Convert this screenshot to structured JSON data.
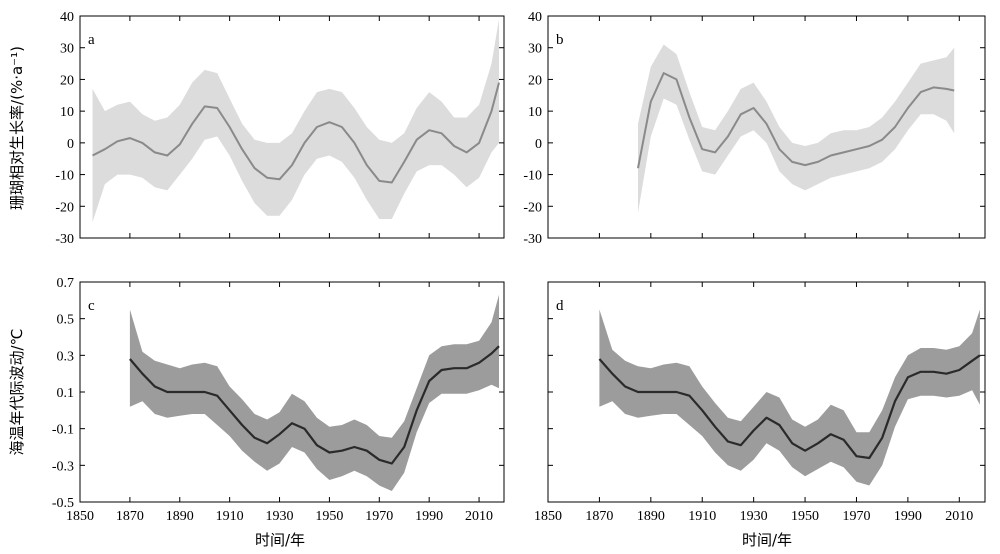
{
  "figure": {
    "xlabel": "时间/年",
    "ylabel_top": "珊瑚相对生长率/(%·a⁻¹)",
    "ylabel_bottom": "海温年代际波动/℃"
  },
  "colors": {
    "band_top": "#dcdcdc",
    "line_top": "#8a8a8a",
    "band_bottom": "#9c9c9c",
    "line_bottom": "#2a2a2a",
    "axis": "#000000"
  },
  "chart_data": [
    {
      "panel": "a",
      "type": "area",
      "xlim": [
        1850,
        2020
      ],
      "ylim": [
        -30,
        40
      ],
      "xticks": [
        1850,
        1870,
        1890,
        1910,
        1930,
        1950,
        1970,
        1990,
        2010
      ],
      "yticks": [
        -30,
        -20,
        -10,
        0,
        10,
        20,
        30,
        40
      ],
      "x": [
        1855,
        1860,
        1865,
        1870,
        1875,
        1880,
        1885,
        1890,
        1895,
        1900,
        1905,
        1910,
        1915,
        1920,
        1925,
        1930,
        1935,
        1940,
        1945,
        1950,
        1955,
        1960,
        1965,
        1970,
        1975,
        1980,
        1985,
        1990,
        1995,
        2000,
        2005,
        2010,
        2015,
        2018
      ],
      "mean": [
        -4,
        -2,
        0.5,
        1.5,
        0,
        -3,
        -4,
        -0.5,
        6,
        11.5,
        11,
        5,
        -2,
        -8,
        -11,
        -11.5,
        -7,
        0,
        5,
        6.5,
        5,
        0,
        -7,
        -12,
        -12.5,
        -6,
        1,
        4,
        3,
        -1,
        -3,
        0,
        10,
        19
      ],
      "upper": [
        17,
        10,
        12,
        13,
        9,
        7,
        8,
        12,
        19,
        23,
        22,
        14,
        6,
        1,
        0,
        0,
        3,
        10,
        16,
        17,
        16,
        11,
        5,
        1,
        0,
        3,
        11,
        16,
        13,
        8,
        8,
        12,
        25,
        39
      ],
      "lower": [
        -25,
        -13,
        -10,
        -10,
        -11,
        -14,
        -15,
        -10,
        -5,
        1,
        2,
        -4,
        -12,
        -19,
        -23,
        -23,
        -18,
        -10,
        -5,
        -4,
        -6,
        -11,
        -18,
        -24,
        -24,
        -16,
        -9,
        -7,
        -7,
        -10,
        -14,
        -11,
        -3,
        0
      ]
    },
    {
      "panel": "b",
      "type": "area",
      "xlim": [
        1850,
        2020
      ],
      "ylim": [
        -30,
        40
      ],
      "xticks": [
        1850,
        1870,
        1890,
        1910,
        1930,
        1950,
        1970,
        1990,
        2010
      ],
      "yticks": [
        -30,
        -20,
        -10,
        0,
        10,
        20,
        30,
        40
      ],
      "x": [
        1885,
        1890,
        1895,
        1900,
        1905,
        1910,
        1915,
        1920,
        1925,
        1930,
        1935,
        1940,
        1945,
        1950,
        1955,
        1960,
        1965,
        1970,
        1975,
        1980,
        1985,
        1990,
        1995,
        2000,
        2005,
        2008
      ],
      "mean": [
        -8,
        13,
        22,
        20,
        8,
        -2,
        -3,
        2,
        9,
        11,
        6,
        -2,
        -6,
        -7,
        -6,
        -4,
        -3,
        -2,
        -1,
        1,
        5,
        11,
        16,
        17.5,
        17,
        16.5
      ],
      "upper": [
        6,
        24,
        31,
        28,
        16,
        5,
        4,
        10,
        17,
        19,
        13,
        5,
        0,
        -1,
        0,
        3,
        4,
        4,
        5,
        8,
        13,
        19,
        25,
        26,
        27,
        30
      ],
      "lower": [
        -22,
        2,
        14,
        12,
        1,
        -9,
        -10,
        -4,
        2,
        4,
        0,
        -9,
        -13,
        -15,
        -13,
        -11,
        -10,
        -9,
        -8,
        -6,
        -2,
        4,
        9,
        9,
        7,
        3
      ]
    },
    {
      "panel": "c",
      "type": "area",
      "xlim": [
        1850,
        2020
      ],
      "ylim": [
        -0.5,
        0.7
      ],
      "xticks": [
        1850,
        1870,
        1890,
        1910,
        1930,
        1950,
        1970,
        1990,
        2010
      ],
      "yticks": [
        -0.5,
        -0.3,
        -0.1,
        0.1,
        0.3,
        0.5,
        0.7
      ],
      "x": [
        1870,
        1875,
        1880,
        1885,
        1890,
        1895,
        1900,
        1905,
        1910,
        1915,
        1920,
        1925,
        1930,
        1935,
        1940,
        1945,
        1950,
        1955,
        1960,
        1965,
        1970,
        1975,
        1980,
        1985,
        1990,
        1995,
        2000,
        2005,
        2010,
        2015,
        2018
      ],
      "mean": [
        0.28,
        0.2,
        0.13,
        0.1,
        0.1,
        0.1,
        0.1,
        0.08,
        0.0,
        -0.08,
        -0.15,
        -0.18,
        -0.13,
        -0.07,
        -0.1,
        -0.19,
        -0.23,
        -0.22,
        -0.2,
        -0.22,
        -0.27,
        -0.29,
        -0.2,
        0.0,
        0.16,
        0.22,
        0.23,
        0.23,
        0.26,
        0.31,
        0.35
      ],
      "upper": [
        0.55,
        0.32,
        0.27,
        0.25,
        0.23,
        0.25,
        0.26,
        0.24,
        0.13,
        0.06,
        -0.02,
        -0.05,
        -0.01,
        0.09,
        0.05,
        -0.04,
        -0.09,
        -0.08,
        -0.05,
        -0.08,
        -0.14,
        -0.15,
        -0.06,
        0.12,
        0.3,
        0.35,
        0.36,
        0.36,
        0.38,
        0.48,
        0.63
      ],
      "lower": [
        0.02,
        0.05,
        -0.02,
        -0.04,
        -0.03,
        -0.02,
        -0.02,
        -0.08,
        -0.14,
        -0.22,
        -0.28,
        -0.33,
        -0.29,
        -0.2,
        -0.23,
        -0.32,
        -0.38,
        -0.36,
        -0.33,
        -0.36,
        -0.41,
        -0.44,
        -0.34,
        -0.12,
        0.04,
        0.09,
        0.09,
        0.09,
        0.11,
        0.14,
        0.12
      ]
    },
    {
      "panel": "d",
      "type": "area",
      "xlim": [
        1850,
        2020
      ],
      "ylim": [
        -0.5,
        0.7
      ],
      "xticks": [
        1850,
        1870,
        1890,
        1910,
        1930,
        1950,
        1970,
        1990,
        2010
      ],
      "yticks": [],
      "x": [
        1870,
        1875,
        1880,
        1885,
        1890,
        1895,
        1900,
        1905,
        1910,
        1915,
        1920,
        1925,
        1930,
        1935,
        1940,
        1945,
        1950,
        1955,
        1960,
        1965,
        1970,
        1975,
        1980,
        1985,
        1990,
        1995,
        2000,
        2005,
        2010,
        2015,
        2018
      ],
      "mean": [
        0.28,
        0.2,
        0.13,
        0.1,
        0.1,
        0.1,
        0.1,
        0.08,
        0.0,
        -0.09,
        -0.17,
        -0.19,
        -0.11,
        -0.04,
        -0.08,
        -0.18,
        -0.22,
        -0.18,
        -0.13,
        -0.16,
        -0.25,
        -0.26,
        -0.15,
        0.05,
        0.18,
        0.21,
        0.21,
        0.2,
        0.22,
        0.27,
        0.3
      ],
      "upper": [
        0.55,
        0.33,
        0.27,
        0.24,
        0.23,
        0.25,
        0.26,
        0.24,
        0.13,
        0.04,
        -0.04,
        -0.06,
        0.02,
        0.1,
        0.07,
        -0.05,
        -0.09,
        -0.05,
        0.03,
        0.0,
        -0.12,
        -0.12,
        0.0,
        0.18,
        0.3,
        0.34,
        0.34,
        0.33,
        0.35,
        0.42,
        0.55
      ],
      "lower": [
        0.02,
        0.05,
        -0.02,
        -0.04,
        -0.03,
        -0.02,
        -0.02,
        -0.08,
        -0.14,
        -0.23,
        -0.3,
        -0.33,
        -0.27,
        -0.18,
        -0.22,
        -0.31,
        -0.36,
        -0.32,
        -0.28,
        -0.31,
        -0.39,
        -0.41,
        -0.3,
        -0.09,
        0.06,
        0.08,
        0.08,
        0.07,
        0.08,
        0.11,
        0.03
      ]
    }
  ]
}
